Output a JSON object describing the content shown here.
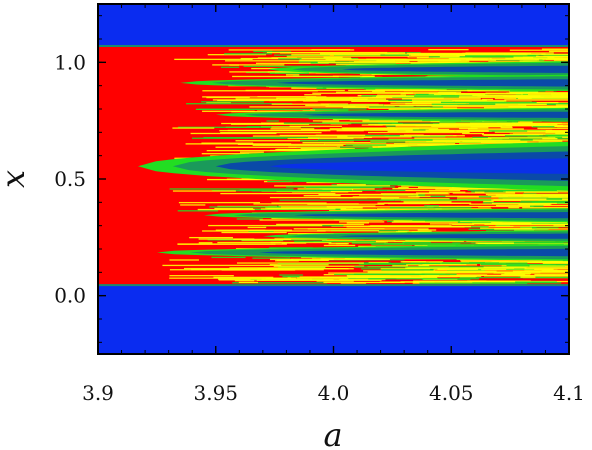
{
  "chart_data": {
    "type": "heatmap",
    "title": "",
    "xlabel": "a",
    "ylabel": "x",
    "xlim": [
      3.9,
      4.1
    ],
    "ylim": [
      -0.25,
      1.25
    ],
    "x_ticks": [
      3.9,
      3.95,
      4.0,
      4.05,
      4.1
    ],
    "x_tick_labels": [
      "3.9",
      "3.95",
      "4.0",
      "4.05",
      "4.1"
    ],
    "y_ticks": [
      0.0,
      0.5,
      1.0
    ],
    "y_tick_labels": [
      "0.0",
      "0.5",
      "1.0"
    ],
    "invariant_region": [
      0.045,
      1.07
    ],
    "colors": {
      "outside": "#0a2cf0",
      "chaotic": "#ff0000",
      "mixed": "#ffff00",
      "light_window": "#22dd22",
      "medium_window": "#1a9a5a",
      "deep_window": "#0a4aa8",
      "deepest_window": "#0a30e8",
      "border_line": "#1a8a70"
    },
    "windows": [
      {
        "center": 0.555,
        "tip_a": 3.917,
        "half_width_at_right": 0.105
      },
      {
        "center": 0.97,
        "tip_a": 3.972,
        "half_width_at_right": 0.035
      },
      {
        "center": 0.912,
        "tip_a": 3.935,
        "half_width_at_right": 0.035
      },
      {
        "center": 0.775,
        "tip_a": 3.95,
        "half_width_at_right": 0.03
      },
      {
        "center": 0.345,
        "tip_a": 3.945,
        "half_width_at_right": 0.03
      },
      {
        "center": 0.255,
        "tip_a": 3.97,
        "half_width_at_right": 0.025
      },
      {
        "center": 0.185,
        "tip_a": 3.925,
        "half_width_at_right": 0.035
      }
    ]
  }
}
